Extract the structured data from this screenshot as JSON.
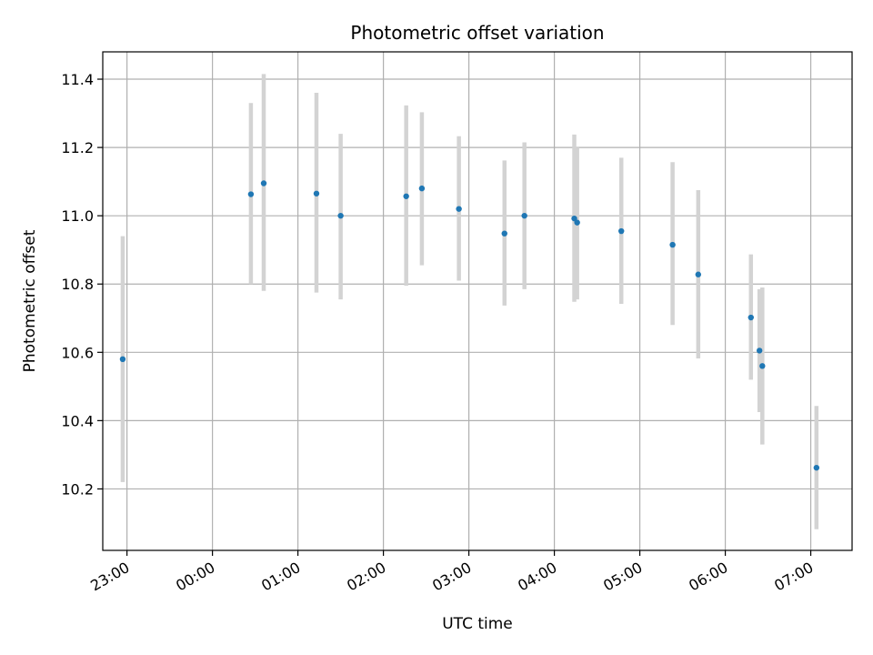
{
  "chart_data": {
    "type": "scatter",
    "title": "Photometric offset variation",
    "xlabel": "UTC time",
    "ylabel": "Photometric offset",
    "x_tick_labels": [
      "23:00",
      "00:00",
      "01:00",
      "02:00",
      "03:00",
      "04:00",
      "05:00",
      "06:00",
      "07:00"
    ],
    "y_tick_labels": [
      "10.2",
      "10.4",
      "10.6",
      "10.8",
      "11.0",
      "11.2",
      "11.4"
    ],
    "y_ticks": [
      10.2,
      10.4,
      10.6,
      10.8,
      11.0,
      11.2,
      11.4
    ],
    "xlim": [
      "22:43",
      "07:29"
    ],
    "ylim": [
      10.02,
      11.48
    ],
    "grid": true,
    "point_color": "#1f77b4",
    "errorbar_color": "#d3d3d3",
    "points": [
      {
        "t": "22:57",
        "y": 10.58,
        "err_low": 10.22,
        "err_high": 10.94
      },
      {
        "t": "00:27",
        "y": 11.063,
        "err_low": 10.8,
        "err_high": 11.33
      },
      {
        "t": "00:36",
        "y": 11.095,
        "err_low": 10.78,
        "err_high": 11.415
      },
      {
        "t": "01:13",
        "y": 11.065,
        "err_low": 10.775,
        "err_high": 11.36
      },
      {
        "t": "01:30",
        "y": 11.0,
        "err_low": 10.755,
        "err_high": 11.24
      },
      {
        "t": "02:16",
        "y": 11.057,
        "err_low": 10.795,
        "err_high": 11.323
      },
      {
        "t": "02:27",
        "y": 11.08,
        "err_low": 10.855,
        "err_high": 11.303
      },
      {
        "t": "02:53",
        "y": 11.02,
        "err_low": 10.81,
        "err_high": 11.233
      },
      {
        "t": "03:25",
        "y": 10.948,
        "err_low": 10.737,
        "err_high": 11.162
      },
      {
        "t": "03:39",
        "y": 11.0,
        "err_low": 10.785,
        "err_high": 11.215
      },
      {
        "t": "04:14",
        "y": 10.992,
        "err_low": 10.748,
        "err_high": 11.238
      },
      {
        "t": "04:16",
        "y": 10.98,
        "err_low": 10.755,
        "err_high": 11.2
      },
      {
        "t": "04:47",
        "y": 10.955,
        "err_low": 10.742,
        "err_high": 11.17
      },
      {
        "t": "05:23",
        "y": 10.915,
        "err_low": 10.68,
        "err_high": 11.157
      },
      {
        "t": "05:41",
        "y": 10.828,
        "err_low": 10.582,
        "err_high": 11.075
      },
      {
        "t": "06:18",
        "y": 10.702,
        "err_low": 10.52,
        "err_high": 10.887
      },
      {
        "t": "06:24",
        "y": 10.605,
        "err_low": 10.425,
        "err_high": 10.785
      },
      {
        "t": "06:26",
        "y": 10.56,
        "err_low": 10.33,
        "err_high": 10.79
      },
      {
        "t": "07:04",
        "y": 10.262,
        "err_low": 10.082,
        "err_high": 10.443
      }
    ]
  }
}
